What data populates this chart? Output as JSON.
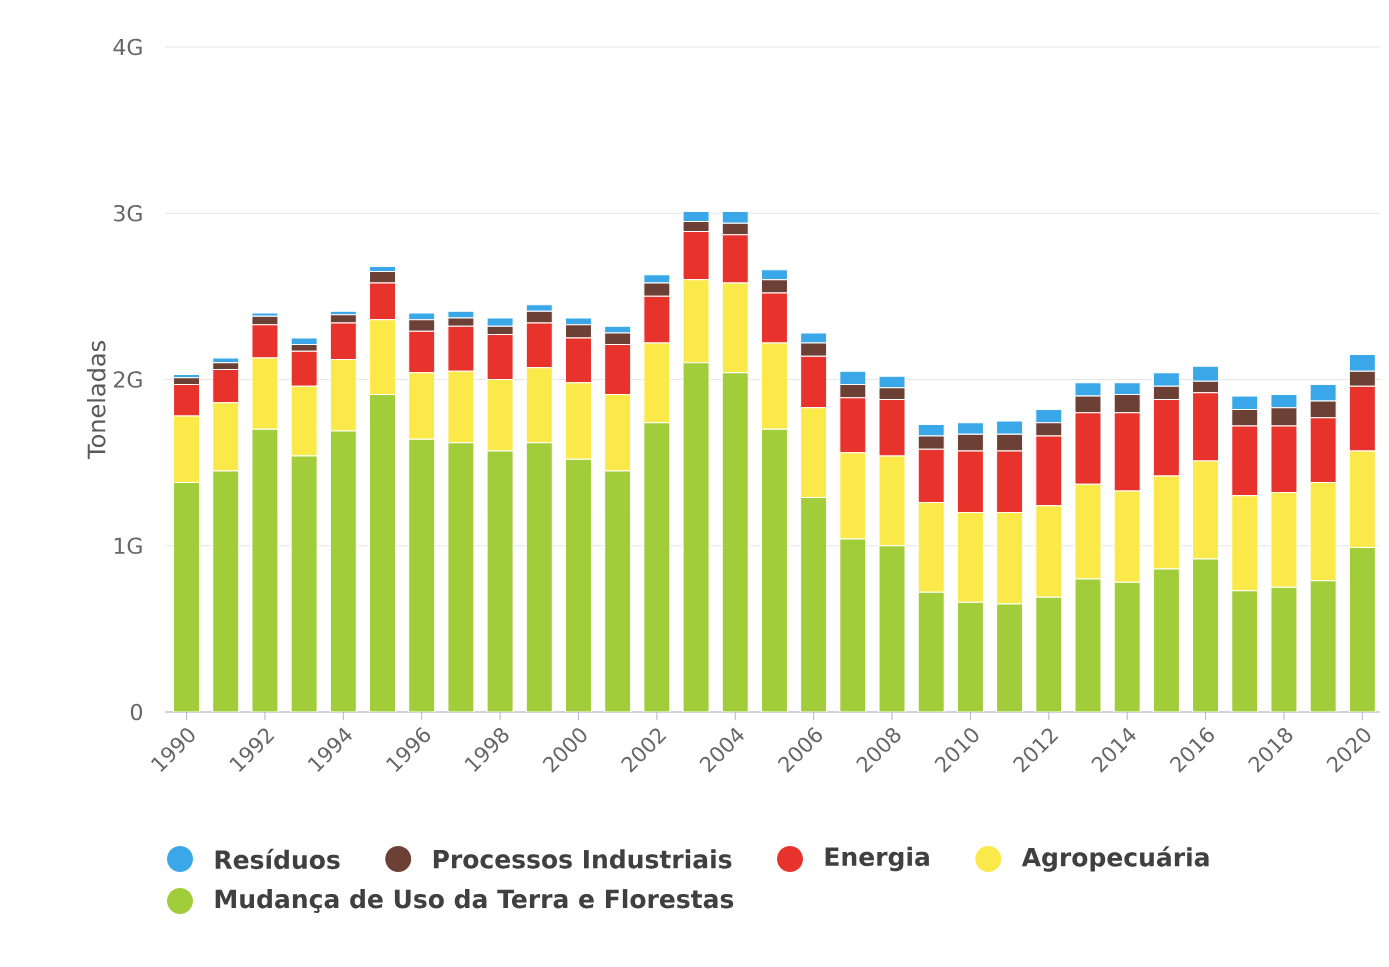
{
  "chart_data": {
    "type": "bar",
    "stacked": true,
    "ylabel": "Toneladas",
    "categories": [
      "1990",
      null,
      "1992",
      null,
      "1994",
      null,
      "1996",
      null,
      "1998",
      null,
      "2000",
      null,
      "2002",
      null,
      "2004",
      null,
      "2006",
      null,
      "2008",
      null,
      "2010",
      null,
      "2012",
      null,
      "2014",
      null,
      "2016",
      null,
      "2018",
      null,
      "2020"
    ],
    "series": [
      {
        "name": "Mudança de Uso da Terra e Florestas",
        "color": "#a2cd3a",
        "values": [
          1.38,
          1.45,
          1.7,
          1.54,
          1.69,
          1.91,
          1.64,
          1.62,
          1.57,
          1.62,
          1.52,
          1.45,
          1.74,
          2.1,
          2.04,
          1.7,
          1.29,
          1.04,
          1.0,
          0.72,
          0.66,
          0.65,
          0.69,
          0.8,
          0.78,
          0.86,
          0.92,
          0.73,
          0.75,
          0.79,
          0.99
        ]
      },
      {
        "name": "Agropecuária",
        "color": "#fbe94a",
        "values": [
          0.4,
          0.41,
          0.43,
          0.42,
          0.43,
          0.45,
          0.4,
          0.43,
          0.43,
          0.45,
          0.46,
          0.46,
          0.48,
          0.5,
          0.54,
          0.52,
          0.54,
          0.52,
          0.54,
          0.54,
          0.54,
          0.55,
          0.55,
          0.57,
          0.55,
          0.56,
          0.59,
          0.57,
          0.57,
          0.59,
          0.58
        ]
      },
      {
        "name": "Energia",
        "color": "#e8332c",
        "values": [
          0.19,
          0.2,
          0.2,
          0.21,
          0.22,
          0.22,
          0.25,
          0.27,
          0.27,
          0.27,
          0.27,
          0.3,
          0.28,
          0.29,
          0.29,
          0.3,
          0.31,
          0.33,
          0.34,
          0.32,
          0.37,
          0.37,
          0.42,
          0.43,
          0.47,
          0.46,
          0.41,
          0.42,
          0.4,
          0.39,
          0.39
        ]
      },
      {
        "name": "Processos Industriais",
        "color": "#6d4035",
        "values": [
          0.04,
          0.04,
          0.05,
          0.04,
          0.05,
          0.07,
          0.07,
          0.05,
          0.05,
          0.07,
          0.08,
          0.07,
          0.08,
          0.06,
          0.07,
          0.08,
          0.08,
          0.08,
          0.07,
          0.08,
          0.1,
          0.1,
          0.08,
          0.1,
          0.11,
          0.08,
          0.07,
          0.1,
          0.11,
          0.1,
          0.09
        ]
      },
      {
        "name": "Resíduos",
        "color": "#3aa8e8",
        "values": [
          0.02,
          0.03,
          0.02,
          0.04,
          0.02,
          0.03,
          0.04,
          0.04,
          0.05,
          0.04,
          0.04,
          0.04,
          0.05,
          0.06,
          0.07,
          0.06,
          0.06,
          0.08,
          0.07,
          0.07,
          0.07,
          0.08,
          0.08,
          0.08,
          0.07,
          0.08,
          0.09,
          0.08,
          0.08,
          0.1,
          0.1
        ]
      }
    ],
    "ylim": [
      0,
      4
    ],
    "yticks": [
      0,
      {
        "value": 1,
        "label": "1G"
      },
      {
        "value": 2,
        "label": "2G"
      },
      {
        "value": 3,
        "label": "3G"
      },
      {
        "value": 4,
        "label": "4G"
      }
    ],
    "grid": "y",
    "legend": "bottom"
  }
}
